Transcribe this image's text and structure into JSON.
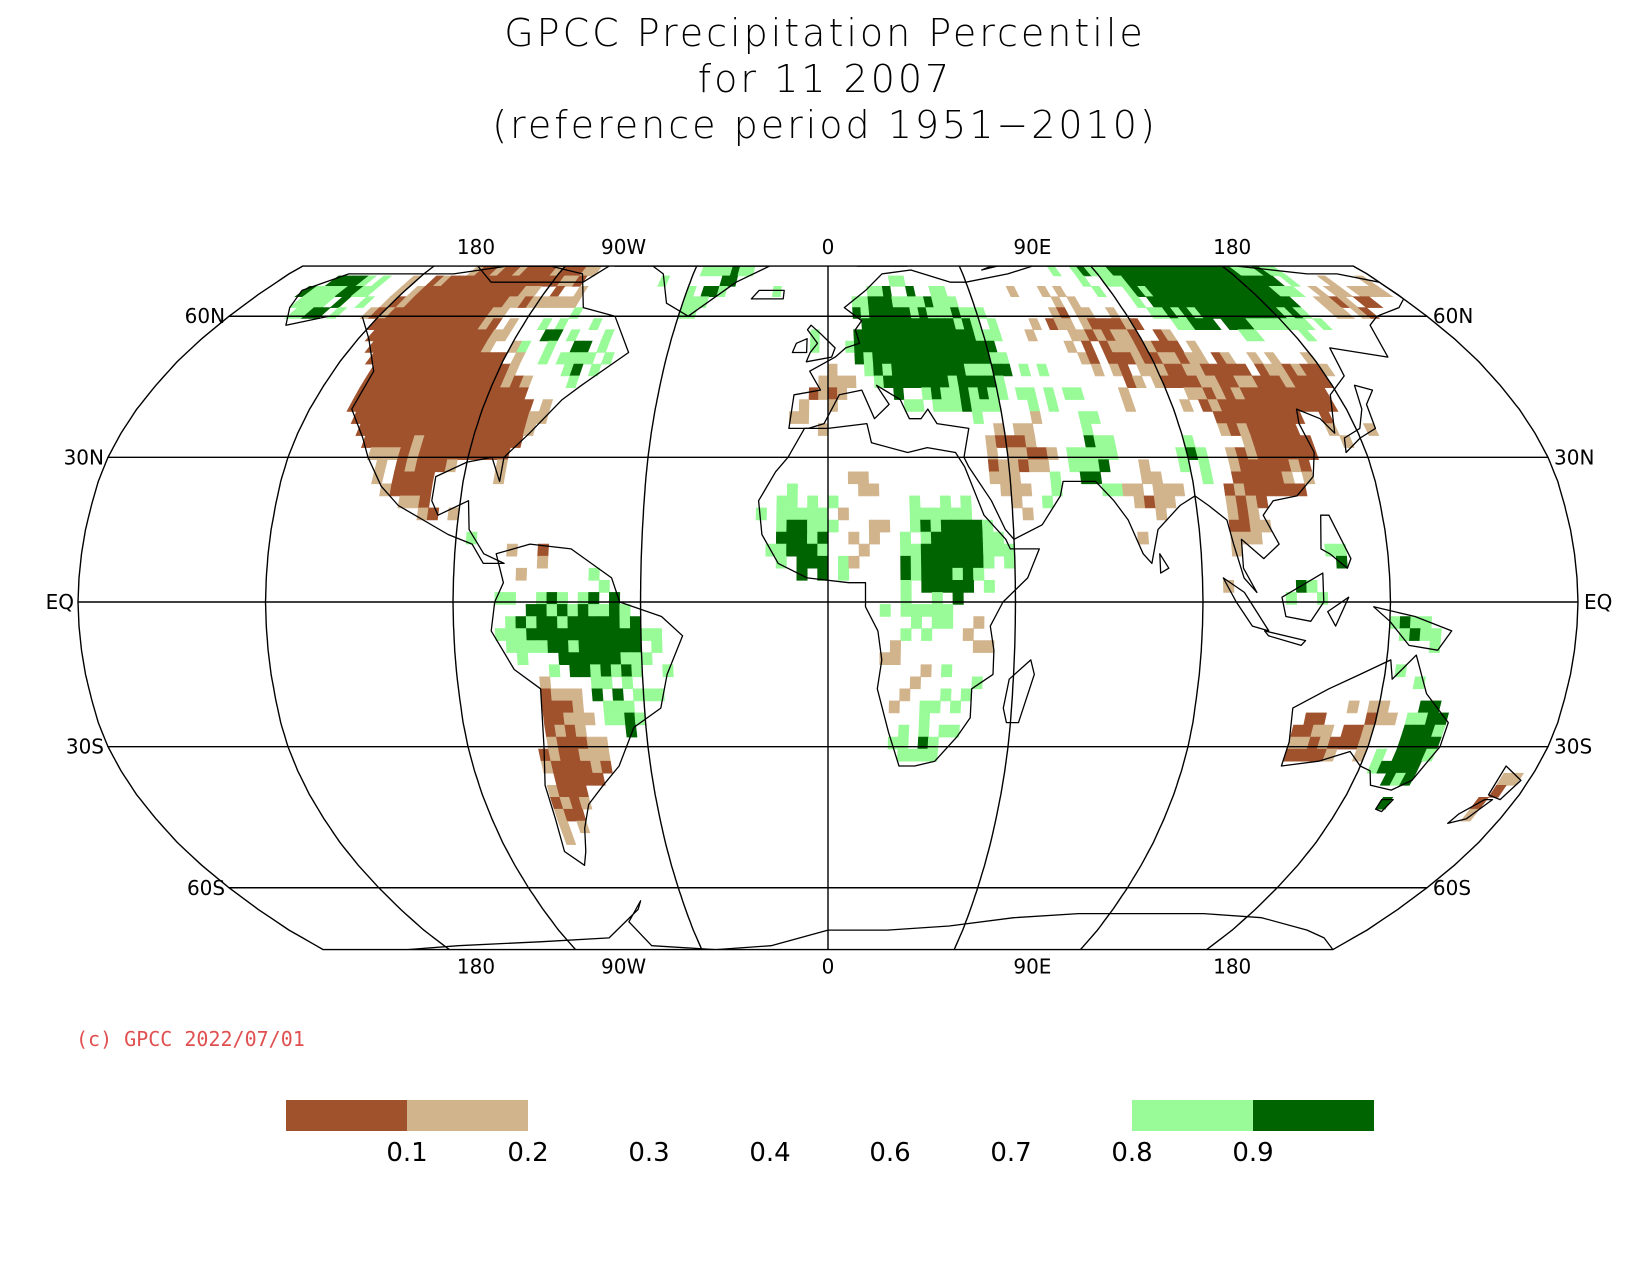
{
  "title": {
    "line1": "GPCC Precipitation Percentile",
    "line2": "for 11 2007",
    "line3": "(reference period 1951−2010)"
  },
  "copyright": "(c) GPCC 2022/07/01",
  "map": {
    "projection": "Robinson",
    "lon_labels_top": [
      "180",
      "90W",
      "0",
      "90E",
      "180"
    ],
    "lon_labels_bottom": [
      "180",
      "90W",
      "0",
      "90E",
      "180"
    ],
    "lat_labels_left": [
      "60N",
      "30N",
      "EQ",
      "30S",
      "60S"
    ],
    "lat_labels_right": [
      "60N",
      "30N",
      "EQ",
      "30S",
      "60S"
    ]
  },
  "legend": {
    "tick_labels": [
      "0.1",
      "0.2",
      "0.3",
      "0.4",
      "0.6",
      "0.7",
      "0.8",
      "0.9"
    ],
    "bins": [
      {
        "range": "< 0.1",
        "color": "#a0522d"
      },
      {
        "range": "0.1 - 0.2",
        "color": "#d2b48c"
      },
      {
        "range": "0.2 - 0.8",
        "color": "#ffffff"
      },
      {
        "range": "0.8 - 0.9",
        "color": "#98fb98"
      },
      {
        "range": "> 0.9",
        "color": "#006400"
      }
    ]
  },
  "colors": {
    "very_dry": "#a0522d",
    "dry": "#d2b48c",
    "wet": "#98fb98",
    "very_wet": "#006400",
    "copyright": "#e05050"
  }
}
